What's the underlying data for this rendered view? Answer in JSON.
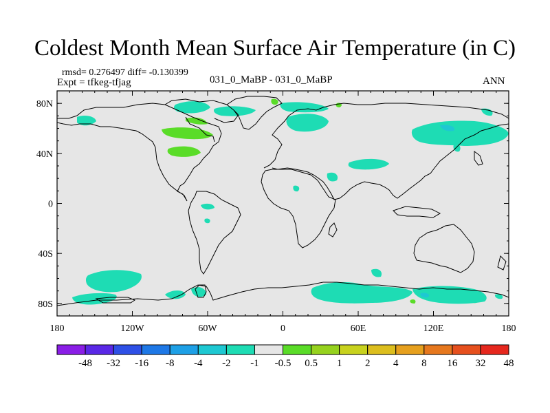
{
  "title": "Coldest Month Mean Surface Air Temperature (in C)",
  "stats": "rmsd= 0.276497 diff= -0.130399",
  "expt": "Expt = tfkeg-tfjag",
  "center_label": "031_0_MaBP - 031_0_MaBP",
  "season": "ANN",
  "map": {
    "projection": "cylindrical-equidistant",
    "lon_range": [
      -180,
      180
    ],
    "lat_range": [
      -90,
      90
    ],
    "lat_ticks": [
      {
        "value": 80,
        "label": "80N"
      },
      {
        "value": 40,
        "label": "40N"
      },
      {
        "value": 0,
        "label": "0"
      },
      {
        "value": -40,
        "label": "40S"
      },
      {
        "value": -80,
        "label": "80S"
      }
    ],
    "lon_ticks": [
      {
        "value": -180,
        "label": "180"
      },
      {
        "value": -120,
        "label": "120W"
      },
      {
        "value": -60,
        "label": "60W"
      },
      {
        "value": 0,
        "label": "0"
      },
      {
        "value": 60,
        "label": "60E"
      },
      {
        "value": 120,
        "label": "120E"
      },
      {
        "value": 180,
        "label": "180"
      }
    ],
    "background_color": "#e6e6e6"
  },
  "colorbar": {
    "colors": [
      "#8a1ee6",
      "#5a28e6",
      "#2e50e6",
      "#1e78e6",
      "#1ea0e6",
      "#1ec8d2",
      "#1edcb4",
      "#e6e6e6",
      "#5adc28",
      "#96d21e",
      "#c8d21e",
      "#dcbe1e",
      "#e6a01e",
      "#e6781e",
      "#e6501e",
      "#e6281e"
    ],
    "labels": [
      "-48",
      "-32",
      "-16",
      "-8",
      "-4",
      "-2",
      "-1",
      "-0.5",
      "0.5",
      "1",
      "2",
      "4",
      "8",
      "16",
      "32",
      "48"
    ]
  }
}
